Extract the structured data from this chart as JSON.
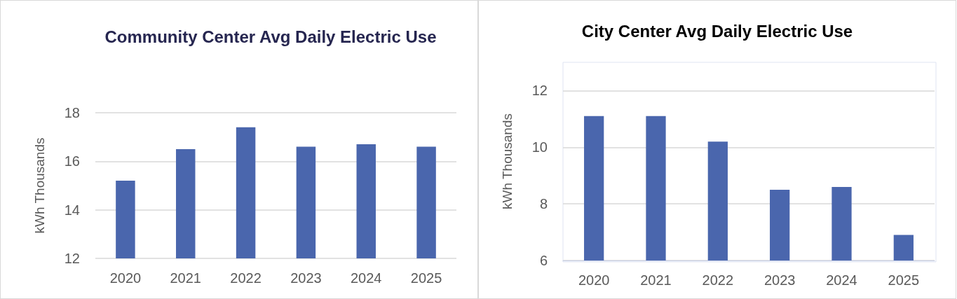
{
  "chart_data": [
    {
      "type": "bar",
      "title": "Community Center Avg Daily Electric Use",
      "ylabel": "kWh Thousands",
      "categories": [
        "2020",
        "2021",
        "2022",
        "2023",
        "2024",
        "2025"
      ],
      "values": [
        15.2,
        16.5,
        17.4,
        16.6,
        16.7,
        16.6
      ],
      "color": "#4a66ad",
      "ylim": [
        12,
        18
      ],
      "yticks": [
        12,
        14,
        16,
        18
      ],
      "grid": "y"
    },
    {
      "type": "bar",
      "title": "City Center Avg Daily Electric Use",
      "ylabel": "kWh Thousands",
      "categories": [
        "2020",
        "2021",
        "2022",
        "2023",
        "2024",
        "2025"
      ],
      "values": [
        11.1,
        11.1,
        10.2,
        8.5,
        8.6,
        6.9
      ],
      "color": "#4a66ad",
      "ylim": [
        6,
        13
      ],
      "yticks": [
        6,
        8,
        10,
        12
      ],
      "grid": "y"
    }
  ]
}
